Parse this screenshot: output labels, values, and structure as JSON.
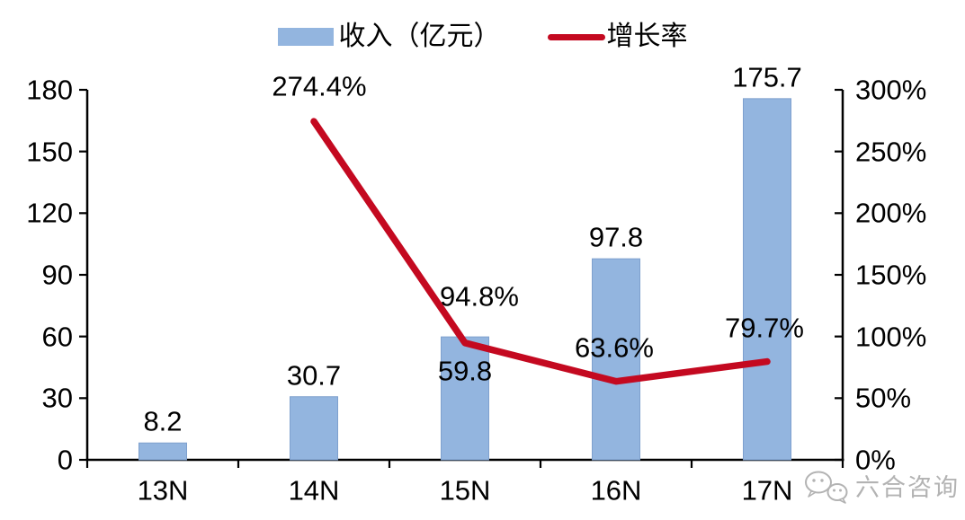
{
  "legend": {
    "revenue_label": "收入（亿元）",
    "growth_label": "增长率"
  },
  "chart_data": {
    "type": "bar",
    "subtype": "combo-bar-line",
    "title": "",
    "categories": [
      "13N",
      "14N",
      "15N",
      "16N",
      "17N"
    ],
    "series": [
      {
        "name": "收入（亿元）",
        "type": "bar",
        "axis": "left",
        "color": "#93B5DF",
        "border_color": "#7EA0CE",
        "values": [
          8.2,
          30.7,
          59.8,
          97.8,
          175.7
        ],
        "data_labels": [
          "8.2",
          "30.7",
          "59.8",
          "97.8",
          "175.7"
        ]
      },
      {
        "name": "增长率",
        "type": "line",
        "axis": "right",
        "color": "#C40920",
        "values": [
          null,
          274.4,
          94.8,
          63.6,
          79.7
        ],
        "data_labels": [
          null,
          "274.4%",
          "94.8%",
          "63.6%",
          "79.7%"
        ]
      }
    ],
    "left_axis": {
      "min": 0,
      "max": 180,
      "tick_labels": [
        "0",
        "30",
        "60",
        "90",
        "120",
        "150",
        "180"
      ]
    },
    "right_axis": {
      "min": 0,
      "max": 300,
      "tick_labels": [
        "0%",
        "50%",
        "100%",
        "150%",
        "200%",
        "250%",
        "300%"
      ]
    },
    "grid": false,
    "legend_position": "top",
    "axis_color": "#000000"
  },
  "watermark": {
    "text": "六合咨询",
    "icon": "wechat-icon"
  }
}
